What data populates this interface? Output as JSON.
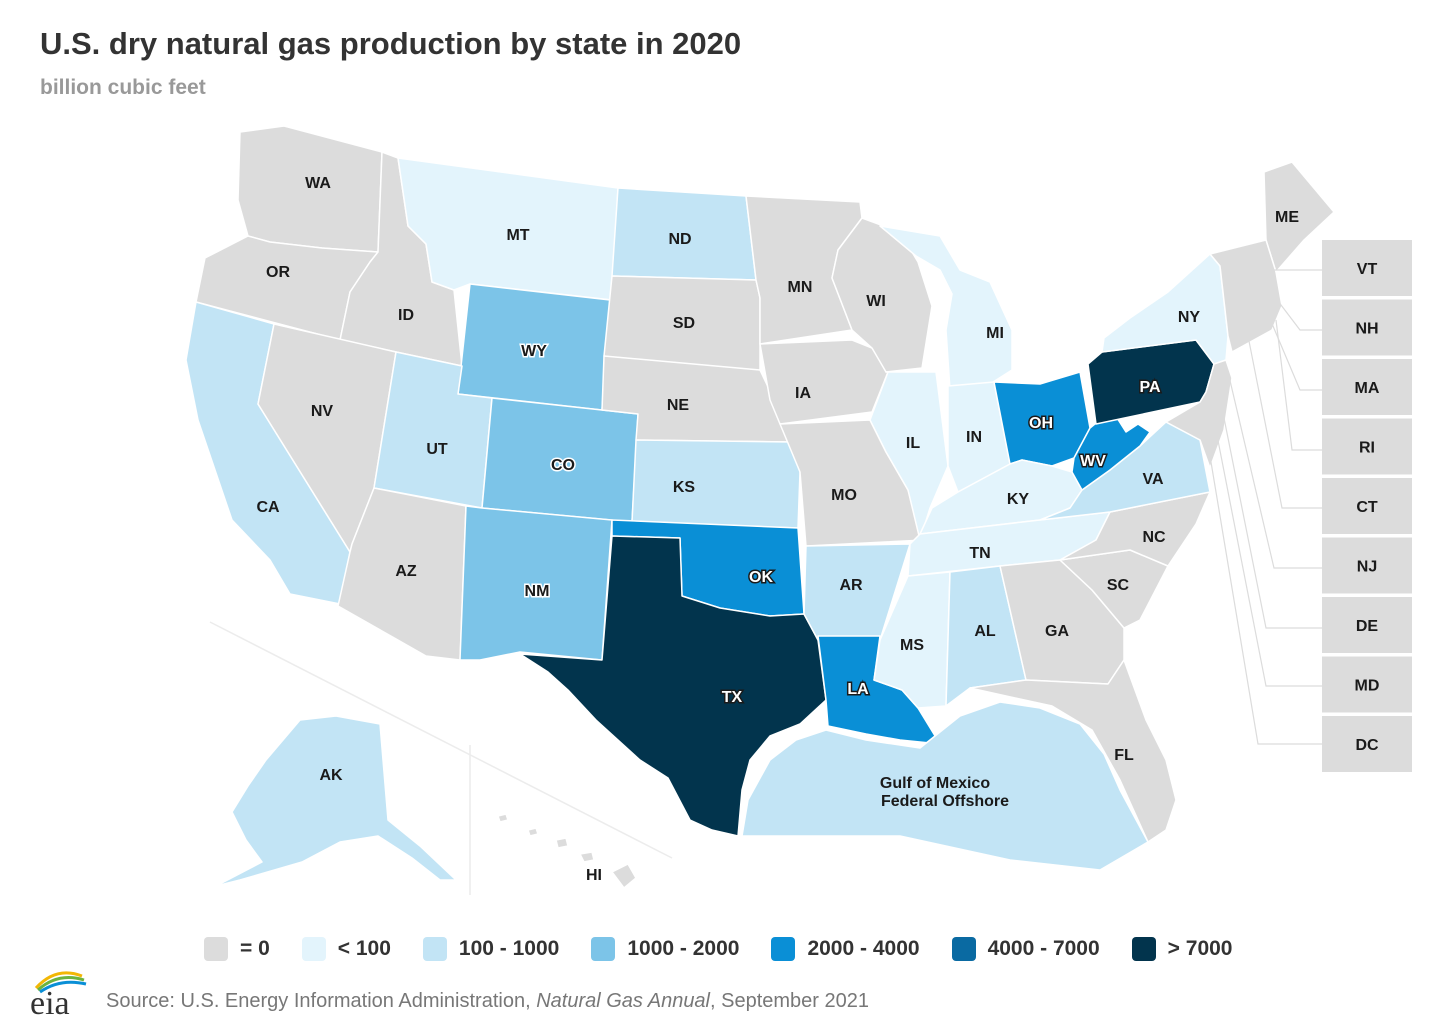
{
  "title": "U.S. dry natural gas production by state in 2020",
  "subtitle": "billion cubic feet",
  "colors": {
    "zero": "#dcdcdc",
    "lt100": "#e3f4fc",
    "b100_1000": "#c2e4f5",
    "b1000_2000": "#7cc4e8",
    "b2000_4000": "#0a8fd6",
    "b4000_7000": "#0a6aa2",
    "gt7000": "#02344d"
  },
  "legend": [
    {
      "label": "= 0",
      "color": "#dcdcdc"
    },
    {
      "label": "< 100",
      "color": "#e3f4fc"
    },
    {
      "label": "100 - 1000",
      "color": "#c2e4f5"
    },
    {
      "label": "1000 - 2000",
      "color": "#7cc4e8"
    },
    {
      "label": "2000 - 4000",
      "color": "#0a8fd6"
    },
    {
      "label": "4000 - 7000",
      "color": "#0a6aa2"
    },
    {
      "label": "> 7000",
      "color": "#02344d"
    }
  ],
  "states": {
    "WA": "WA",
    "OR": "OR",
    "CA": "CA",
    "ID": "ID",
    "NV": "NV",
    "MT": "MT",
    "WY": "WY",
    "UT": "UT",
    "AZ": "AZ",
    "CO": "CO",
    "NM": "NM",
    "ND": "ND",
    "SD": "SD",
    "NE": "NE",
    "KS": "KS",
    "OK": "OK",
    "TX": "TX",
    "MN": "MN",
    "IA": "IA",
    "MO": "MO",
    "AR": "AR",
    "LA": "LA",
    "WI": "WI",
    "IL": "IL",
    "MI": "MI",
    "IN": "IN",
    "OH": "OH",
    "KY": "KY",
    "TN": "TN",
    "MS": "MS",
    "AL": "AL",
    "GA": "GA",
    "FL": "FL",
    "SC": "SC",
    "NC": "NC",
    "VA": "VA",
    "WV": "WV",
    "PA": "PA",
    "NY": "NY",
    "ME": "ME",
    "AK": "AK",
    "HI": "HI",
    "GOM_line1": "Gulf of Mexico",
    "GOM_line2": "Federal Offshore"
  },
  "small_states": [
    "VT",
    "NH",
    "MA",
    "RI",
    "CT",
    "NJ",
    "DE",
    "MD",
    "DC"
  ],
  "source": {
    "prefix": "Source: U.S. Energy Information Administration, ",
    "italic": "Natural Gas Annual",
    "suffix": ", September 2021"
  },
  "logo_text": "eia"
}
